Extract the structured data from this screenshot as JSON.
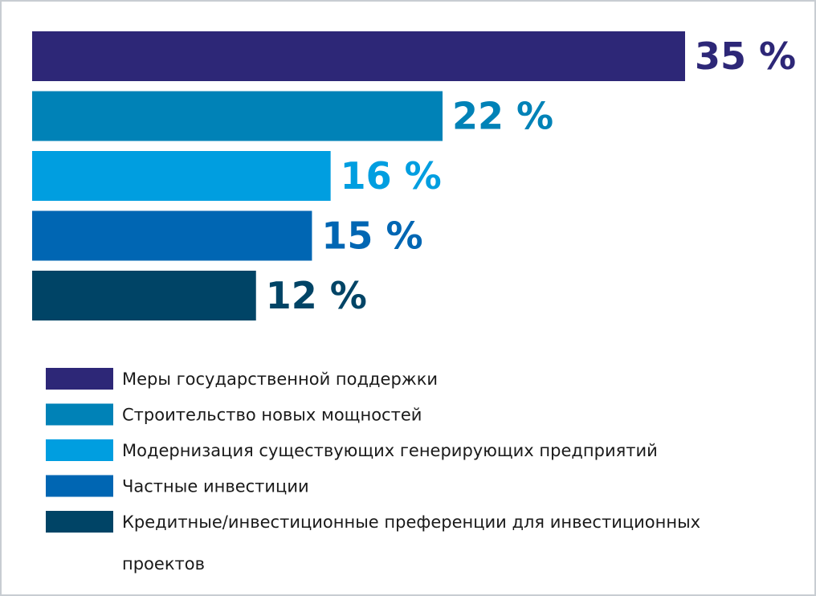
{
  "chart_data": {
    "type": "bar",
    "orientation": "horizontal",
    "categories": [
      "Меры государственной поддержки",
      "Строительство новых мощностей",
      "Модернизация существующих генерирующих предприятий",
      "Частные инвестиции",
      "Кредитные/инвестиционные преференции для инвестиционных проектов"
    ],
    "values": [
      35,
      22,
      16,
      15,
      12
    ],
    "value_labels": [
      "35 %",
      "22 %",
      "16 %",
      "15 %",
      "12 %"
    ],
    "colors": [
      "#2d2777",
      "#0082b7",
      "#009ee0",
      "#0066b3",
      "#004466"
    ],
    "legend": {
      "placement": "bottom",
      "lines": [
        [
          "Меры государственной поддержки"
        ],
        [
          "Строительство новых мощностей"
        ],
        [
          "Модернизация существующих генерирующих предприятий"
        ],
        [
          "Частные инвестиции"
        ],
        [
          "Кредитные/инвестиционные преференции для инвестиционных",
          "проектов"
        ]
      ]
    },
    "title": "",
    "xlabel": "",
    "ylabel": "",
    "xlim": [
      0,
      35
    ],
    "grid": false
  }
}
